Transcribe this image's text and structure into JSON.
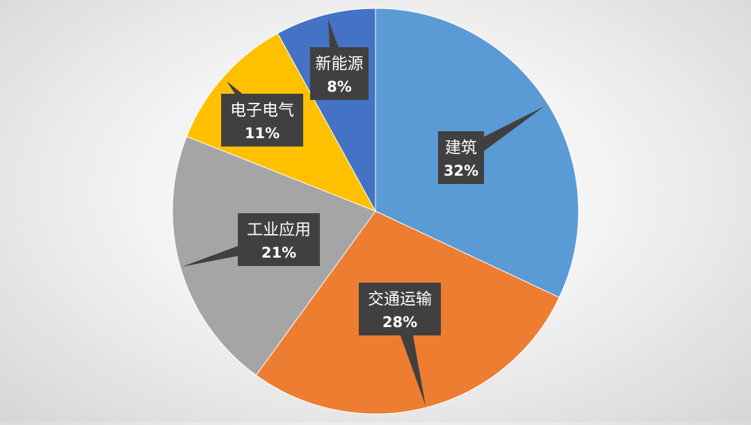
{
  "chart_data": {
    "type": "pie",
    "title": "",
    "slices": [
      {
        "label": "建筑",
        "value": 32,
        "value_label": "32%",
        "color": "#5b9bd5"
      },
      {
        "label": "交通运输",
        "value": 28,
        "value_label": "28%",
        "color": "#ed7d31"
      },
      {
        "label": "工业应用",
        "value": 21,
        "value_label": "21%",
        "color": "#a5a5a5"
      },
      {
        "label": "电子电气",
        "value": 11,
        "value_label": "11%",
        "color": "#ffc000"
      },
      {
        "label": "新能源",
        "value": 8,
        "value_label": "8%",
        "color": "#4472c4"
      }
    ],
    "start": "12 o'clock",
    "direction": "clockwise",
    "label_style": "dark callouts with white text",
    "label_bg_color": "#404040",
    "label_text_color": "#ffffff"
  }
}
